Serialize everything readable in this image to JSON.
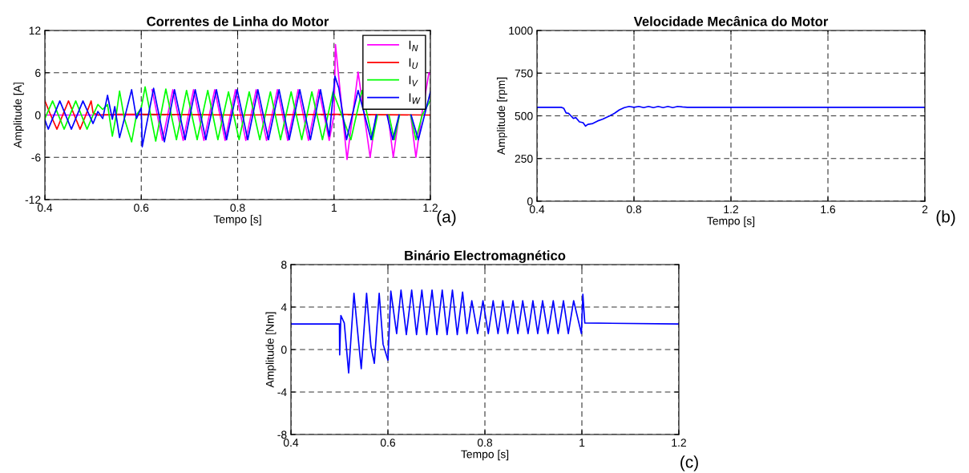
{
  "chart_data": [
    {
      "type": "line",
      "title": "Correntes de Linha do Motor",
      "xlabel": "Tempo [s]",
      "ylabel": "Amplitude [A]",
      "xlim": [
        0.4,
        1.2
      ],
      "ylim": [
        -12,
        12
      ],
      "xticks": [
        0.4,
        0.6,
        0.8,
        1,
        1.2
      ],
      "yticks": [
        -12,
        -6,
        0,
        6,
        12
      ],
      "grid": true,
      "legend": "top right",
      "annotations": [
        "(a)"
      ],
      "series": [
        {
          "name": "I$_{N}$",
          "color": "#ff00ff",
          "x": [
            0.4,
            0.5,
            0.6,
            0.6005,
            0.6225,
            0.644,
            0.6655,
            0.687,
            0.7085,
            0.73,
            0.7525,
            0.774,
            0.7955,
            0.817,
            0.8385,
            0.86,
            0.8825,
            0.904,
            0.9255,
            0.947,
            0.9685,
            0.99,
            1.0,
            1.003,
            1.027,
            1.05,
            1.075,
            1.087,
            1.1,
            1.112,
            1.123,
            1.135,
            1.147,
            1.159,
            1.17,
            1.182,
            1.197,
            1.2
          ],
          "values": [
            0,
            0,
            0,
            null,
            3.6,
            -3.6,
            3.6,
            -3.6,
            3.6,
            -3.6,
            3.6,
            -3.6,
            3.6,
            -3.6,
            3.6,
            -3.6,
            3.6,
            -3.6,
            3.6,
            -3.6,
            3.6,
            -3.6,
            0,
            10,
            -6.3,
            6.1,
            -6,
            0,
            null,
            0,
            -6,
            0,
            null,
            0,
            -6,
            0,
            6,
            5.8
          ]
        },
        {
          "name": "I$_{U}$",
          "color": "#ff0000",
          "x": [
            0.4,
            0.412,
            0.425,
            0.437,
            0.449,
            0.461,
            0.473,
            0.485,
            0.496,
            0.5,
            0.51,
            0.55,
            0.6,
            0.8,
            1.0,
            1.2
          ],
          "values": [
            2,
            0,
            -2,
            0,
            2,
            0,
            -2,
            0,
            2,
            0.3,
            0,
            0.1,
            0.1,
            0,
            0.1,
            0
          ]
        },
        {
          "name": "I$_{V}$",
          "color": "#00ff00",
          "x": [
            0.4,
            0.416,
            0.44,
            0.464,
            0.4875,
            0.5,
            0.51,
            0.52,
            0.53,
            0.54,
            0.548,
            0.555,
            0.565,
            0.58,
            0.59,
            0.6,
            0.608,
            0.63,
            0.651,
            0.673,
            0.694,
            0.716,
            0.738,
            0.759,
            0.781,
            0.803,
            0.824,
            0.846,
            0.868,
            0.889,
            0.911,
            0.933,
            0.954,
            0.976,
            0.998,
            1.035,
            1.058,
            1.08,
            1.09,
            1.103,
            1.114,
            1.125,
            1.136,
            1.148,
            1.159,
            1.17,
            1.183,
            1.2
          ],
          "values": [
            -0.5,
            2,
            -2,
            2,
            -2,
            0,
            1.5,
            0.8,
            1.5,
            -3,
            0,
            3.4,
            -0.5,
            -3.8,
            0,
            1,
            4,
            -3.7,
            3.7,
            -3.5,
            3.5,
            -3.5,
            3.5,
            -3.5,
            3.3,
            -3.5,
            3.3,
            -3.5,
            3.3,
            -3.5,
            3.3,
            -3.5,
            3.3,
            -3.5,
            3.3,
            -3.5,
            3.5,
            -3.5,
            0,
            null,
            0,
            -3.5,
            0,
            null,
            0,
            -3.5,
            0,
            2.1
          ]
        },
        {
          "name": "I$_{W}$",
          "color": "#0000ff",
          "x": [
            0.4,
            0.407,
            0.431,
            0.455,
            0.479,
            0.5,
            0.51,
            0.52,
            0.53,
            0.54,
            0.545,
            0.555,
            0.565,
            0.58,
            0.59,
            0.6,
            0.602,
            0.6256,
            0.648,
            0.669,
            0.691,
            0.712,
            0.734,
            0.756,
            0.777,
            0.799,
            0.821,
            0.842,
            0.864,
            0.886,
            0.907,
            0.929,
            0.951,
            0.972,
            0.99,
            1.002,
            1.01,
            1.026,
            1.05,
            1.077,
            1.088,
            1.1,
            1.11,
            1.122,
            1.135,
            1.147,
            1.16,
            1.175,
            1.2
          ],
          "values": [
            -0.7,
            -2,
            2,
            -2,
            2,
            -1.2,
            0.5,
            -0.5,
            2.8,
            -0.6,
            1.2,
            -3.2,
            -0.5,
            3.6,
            -0.5,
            1.0,
            -4.5,
            3.8,
            -3.8,
            3.6,
            -3.5,
            3.6,
            -3.5,
            3.6,
            -3.5,
            3.6,
            -3.5,
            3.6,
            -3.5,
            3.6,
            -3.5,
            3.6,
            -3.5,
            3.6,
            -3.0,
            5.5,
            3.8,
            -3.5,
            3.5,
            -3.5,
            0,
            null,
            0,
            -3.5,
            0,
            null,
            0,
            -3.5,
            3.3
          ]
        }
      ]
    },
    {
      "type": "line",
      "title": "Velocidade Mecânica do Motor",
      "xlabel": "Tempo [s]",
      "ylabel": "Amplitude [rpm]",
      "xlim": [
        0.4,
        2
      ],
      "ylim": [
        0,
        1000
      ],
      "xticks": [
        0.4,
        0.8,
        1.2,
        1.6,
        2
      ],
      "yticks": [
        0,
        250,
        500,
        750,
        1000
      ],
      "grid": true,
      "annotations": [
        "(b)"
      ],
      "series": [
        {
          "color": "#0000ff",
          "x": [
            0.4,
            0.5,
            0.51,
            0.52,
            0.53,
            0.54,
            0.55,
            0.56,
            0.575,
            0.59,
            0.6,
            0.61,
            0.63,
            0.65,
            0.67,
            0.7,
            0.72,
            0.74,
            0.76,
            0.78,
            0.8,
            0.82,
            0.84,
            0.86,
            0.88,
            0.9,
            0.92,
            0.94,
            0.96,
            0.98,
            1.0,
            1.02,
            2.0
          ],
          "values": [
            550,
            550,
            545,
            517,
            515,
            500,
            485,
            490,
            465,
            460,
            440,
            450,
            455,
            470,
            480,
            500,
            515,
            535,
            548,
            555,
            550,
            555,
            548,
            555,
            548,
            555,
            548,
            555,
            548,
            555,
            552,
            550,
            550
          ]
        }
      ]
    },
    {
      "type": "line",
      "title": "Binário Electromagnético",
      "xlabel": "Tempo [s]",
      "ylabel": "Amplitude [Nm]",
      "xlim": [
        0.4,
        1.2
      ],
      "ylim": [
        -8,
        8
      ],
      "xticks": [
        0.4,
        0.6,
        0.8,
        1,
        1.2
      ],
      "yticks": [
        -8,
        -4,
        0,
        4,
        8
      ],
      "grid": true,
      "annotations": [
        "(c)"
      ],
      "series": [
        {
          "color": "#0000ff",
          "x": [
            0.4,
            0.5,
            0.5005,
            0.503,
            0.51,
            0.519,
            0.53,
            0.54,
            0.545,
            0.556,
            0.565,
            0.572,
            0.582,
            0.59,
            0.6,
            0.606,
            0.618,
            0.627,
            0.638,
            0.649,
            0.659,
            0.67,
            0.68,
            0.691,
            0.701,
            0.712,
            0.722,
            0.733,
            0.743,
            0.754,
            0.763,
            0.773,
            0.785,
            0.796,
            0.807,
            0.817,
            0.827,
            0.837,
            0.847,
            0.858,
            0.868,
            0.878,
            0.889,
            0.899,
            0.909,
            0.919,
            0.93,
            0.941,
            0.951,
            0.962,
            0.972,
            0.983,
            0.999,
            1.002,
            1.006,
            1.2
          ],
          "values": [
            2.4,
            2.4,
            -0.5,
            3.2,
            2.5,
            -2.2,
            5.3,
            0.5,
            -1.8,
            5.3,
            0.3,
            -1.3,
            5.3,
            0.5,
            -1.0,
            5.5,
            1.5,
            5.6,
            1.4,
            5.6,
            1.4,
            5.6,
            1.4,
            5.6,
            1.4,
            5.6,
            1.4,
            5.6,
            1.4,
            5.4,
            1.5,
            4.6,
            1.5,
            4.6,
            1.5,
            4.6,
            1.5,
            4.6,
            1.5,
            4.6,
            1.5,
            4.6,
            1.5,
            4.6,
            1.5,
            4.6,
            1.5,
            4.6,
            1.5,
            4.6,
            1.5,
            4.6,
            1.5,
            5.2,
            2.5,
            2.4
          ]
        }
      ]
    }
  ]
}
